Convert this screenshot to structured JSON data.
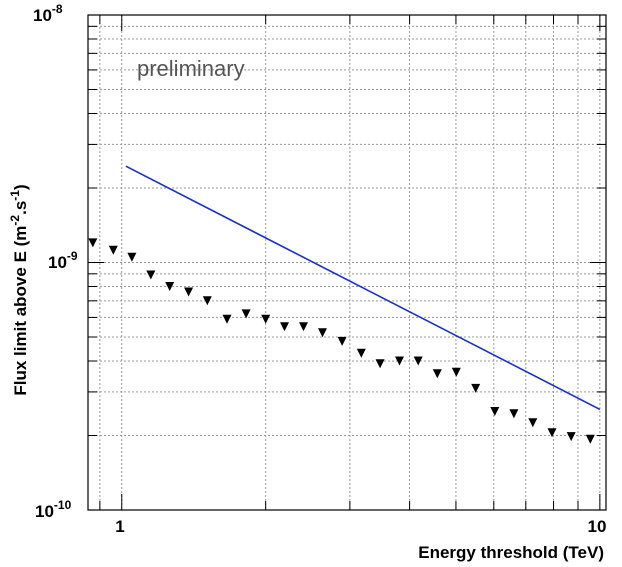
{
  "chart_data": {
    "type": "scatter",
    "title": "",
    "xlabel": "Energy threshold (TeV)",
    "ylabel_main": "Flux limit above E (m",
    "ylabel_sup1": "-2",
    "ylabel_mid": ".s",
    "ylabel_sup2": "-1",
    "ylabel_end": ")",
    "x_scale": "log",
    "y_scale": "log",
    "xlim": [
      0.85,
      10.3
    ],
    "ylim": [
      1e-10,
      1e-08
    ],
    "grid": true,
    "x_tick_labels": [
      {
        "value": 1,
        "label": "1"
      },
      {
        "value": 10,
        "label": "10"
      }
    ],
    "y_tick_labels": [
      {
        "value": 1e-10,
        "base": "10",
        "exp": "-10"
      },
      {
        "value": 1e-09,
        "base": "10",
        "exp": "-9"
      },
      {
        "value": 1e-08,
        "base": "10",
        "exp": "-8"
      }
    ],
    "annotation": "preliminary",
    "series": [
      {
        "marker": "downward-triangle",
        "color": "#000000",
        "x": [
          0.87,
          0.96,
          1.05,
          1.15,
          1.26,
          1.38,
          1.51,
          1.66,
          1.82,
          2.0,
          2.19,
          2.4,
          2.63,
          2.89,
          3.17,
          3.47,
          3.81,
          4.17,
          4.57,
          5.01,
          5.5,
          6.03,
          6.61,
          7.24,
          7.94,
          8.71,
          9.55
        ],
        "y": [
          1.2e-09,
          1.12e-09,
          1.05e-09,
          8.9e-10,
          8e-10,
          7.6e-10,
          7e-10,
          5.9e-10,
          6.2e-10,
          5.9e-10,
          5.5e-10,
          5.5e-10,
          5.2e-10,
          4.8e-10,
          4.3e-10,
          3.9e-10,
          4e-10,
          4e-10,
          3.55e-10,
          3.6e-10,
          3.1e-10,
          2.5e-10,
          2.45e-10,
          2.25e-10,
          2.05e-10,
          1.98e-10,
          1.93e-10
        ]
      },
      {
        "marker": "line",
        "color": "#1a2fc8",
        "x": [
          1.02,
          10.0
        ],
        "y": [
          2.45e-09,
          2.55e-10
        ]
      }
    ]
  }
}
